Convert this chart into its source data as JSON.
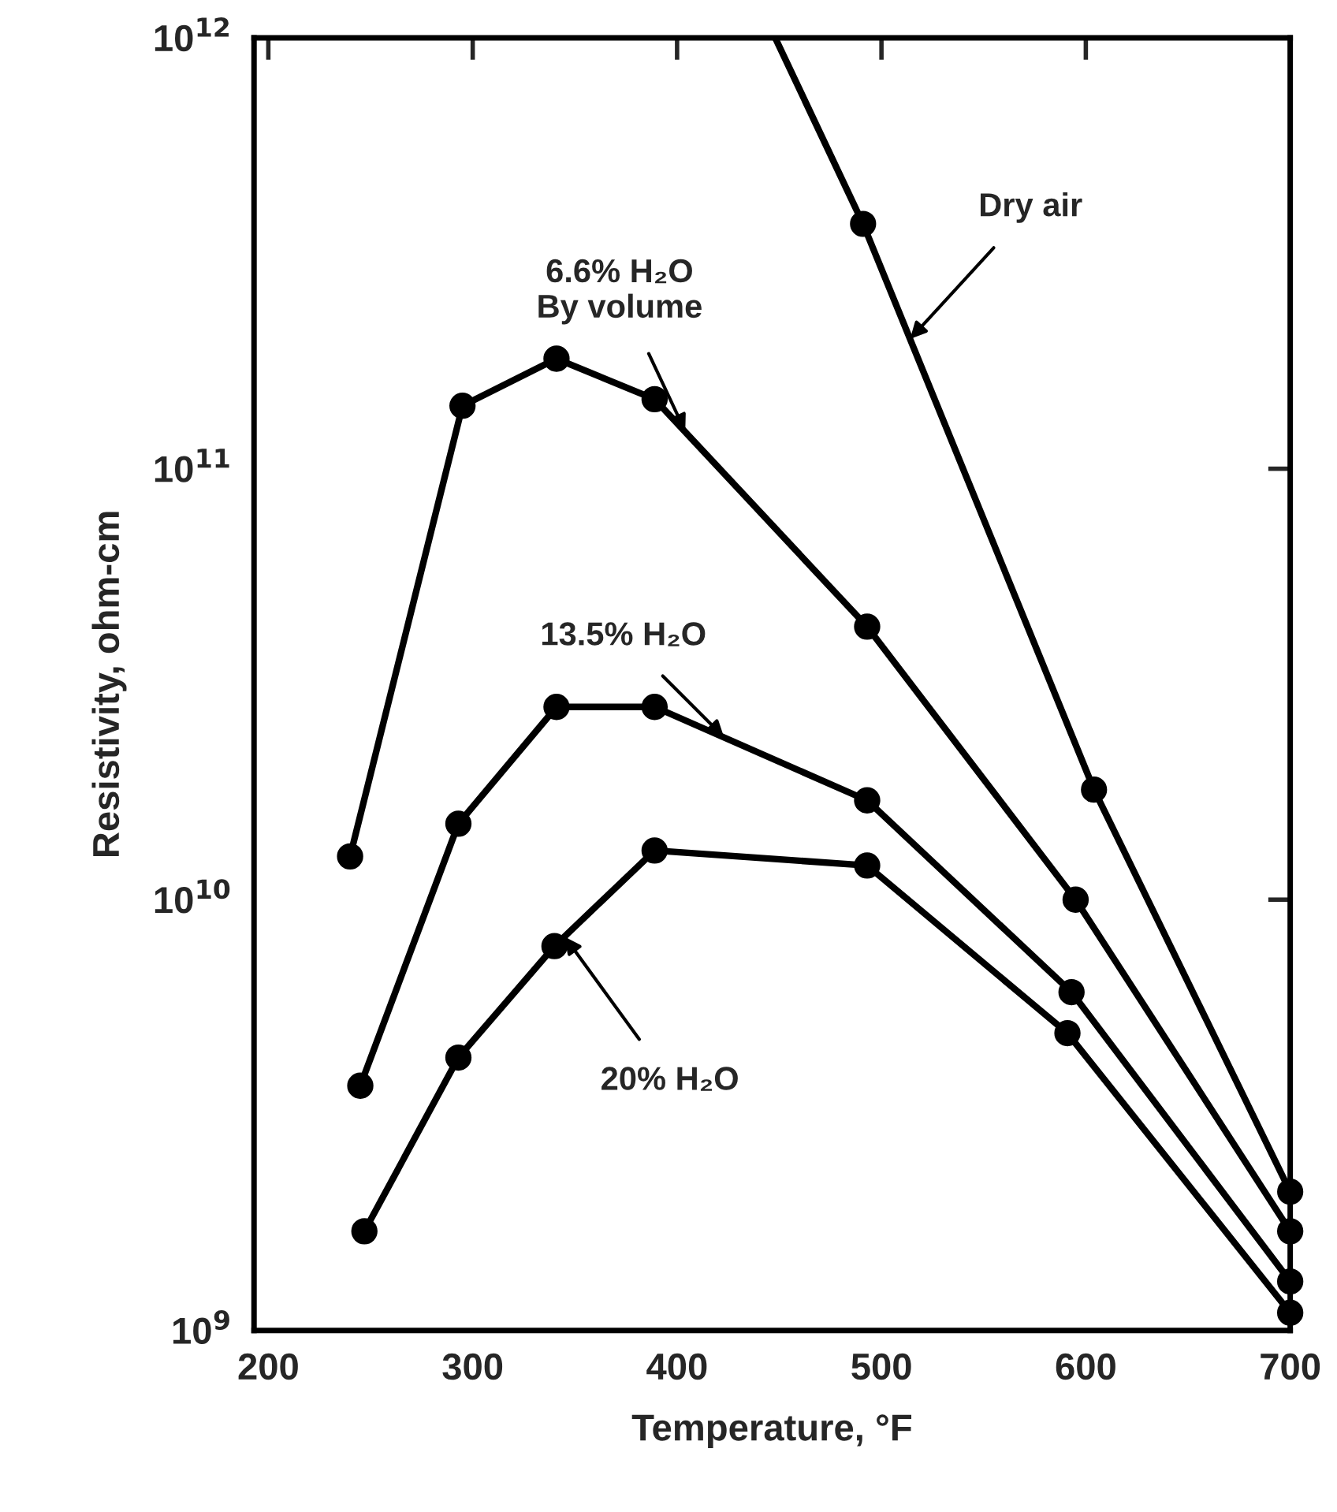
{
  "chart_data": {
    "type": "line",
    "xlabel": "Temperature, °F",
    "ylabel": "Resistivity, ohm-cm",
    "log": "y",
    "grid": false,
    "xlim": [
      193,
      700
    ],
    "xticks": [
      200,
      300,
      400,
      500,
      600,
      700
    ],
    "ylim": [
      1000000000.0,
      1000000000000.0
    ],
    "yticks": [
      {
        "value": 1000000000.0,
        "label": "10$^{9}$"
      },
      {
        "value": 10000000000.0,
        "label": "10$^{10}$"
      },
      {
        "value": 100000000000.0,
        "label": "10$^{11}$"
      },
      {
        "value": 1000000000000.0,
        "label": "10$^{12}$"
      }
    ],
    "series": [
      {
        "marker": "none",
        "color": "#000000",
        "x": [
          448,
          491,
          604,
          700
        ],
        "values": [
          1000000000000.0,
          370000000000.0,
          18000000000.0,
          2100000000.0
        ]
      },
      {
        "type": "scatter",
        "marker": "circle",
        "color": "#000000",
        "x": [
          491,
          604,
          700
        ],
        "values": [
          370000000000.0,
          18000000000.0,
          2100000000.0
        ]
      },
      {
        "marker": "circle",
        "color": "#000000",
        "x": [
          240,
          295,
          341,
          389,
          493,
          595,
          700
        ],
        "values": [
          12600000000.0,
          140000000000.0,
          180000000000.0,
          145000000000.0,
          43000000000.0,
          10000000000.0,
          1700000000.0
        ]
      },
      {
        "marker": "circle",
        "color": "#000000",
        "x": [
          245,
          293,
          341,
          389,
          493,
          593,
          700
        ],
        "values": [
          3700000000.0,
          15000000000.0,
          28000000000.0,
          28000000000.0,
          17000000000.0,
          6100000000.0,
          1300000000.0
        ]
      },
      {
        "marker": "circle",
        "color": "#000000",
        "x": [
          247,
          293,
          340,
          389,
          493,
          591,
          700
        ],
        "values": [
          1700000000.0,
          4300000000.0,
          7800000000.0,
          13000000000.0,
          12000000000.0,
          4900000000.0,
          1100000000.0
        ]
      }
    ],
    "annotations": [
      {
        "text": "Dry air",
        "x": 514,
        "y": 200000000000.0
      },
      {
        "text": "6.6% H₂O\nBy volume",
        "x": 404,
        "y": 122000000000.0
      },
      {
        "text": "13.5% H₂O",
        "x": 423,
        "y": 23800000000.0
      },
      {
        "text": "20% H₂O",
        "x": 345,
        "y": 8200000000.0
      }
    ]
  }
}
